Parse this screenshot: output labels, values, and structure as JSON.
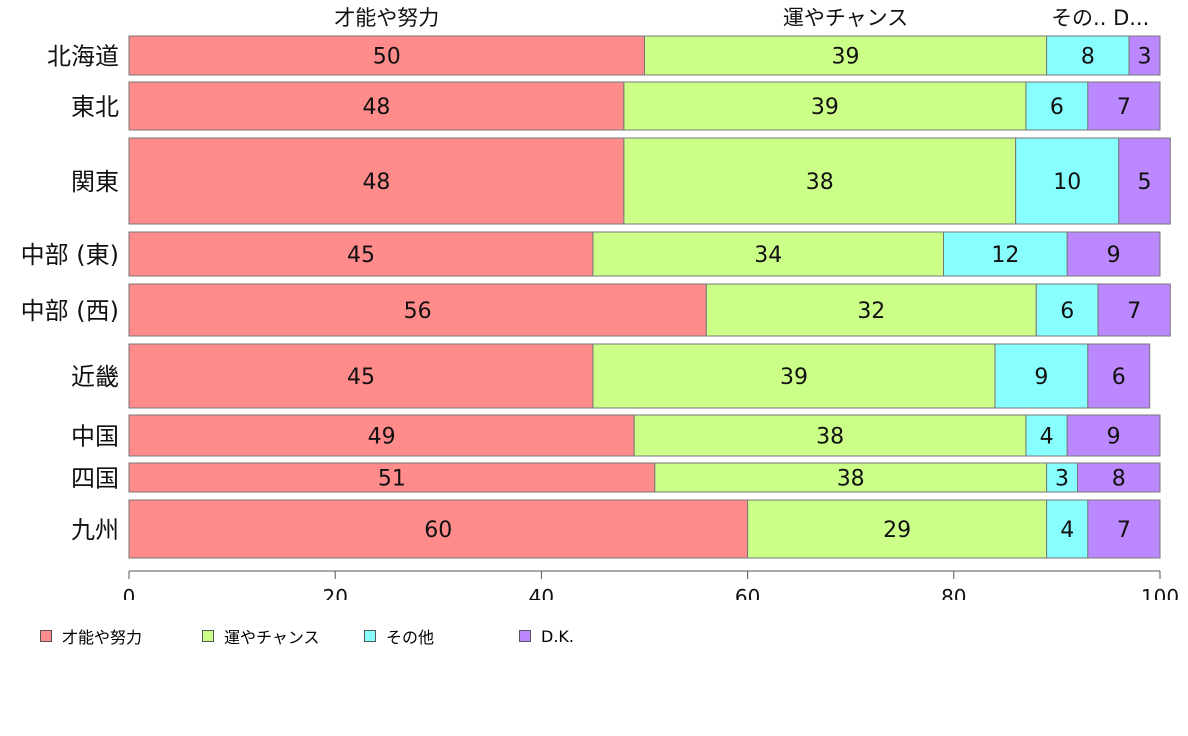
{
  "chart_data": {
    "type": "bar",
    "orientation": "horizontal",
    "stacked": true,
    "categories": [
      "北海道",
      "東北",
      "関東",
      "中部 (東)",
      "中部 (西)",
      "近畿",
      "中国",
      "四国",
      "九州"
    ],
    "series": [
      {
        "name": "才能や努力",
        "color": "#ff8b8b",
        "values": [
          50,
          48,
          48,
          45,
          56,
          45,
          49,
          51,
          60
        ]
      },
      {
        "name": "運やチャンス",
        "color": "#ccff88",
        "values": [
          39,
          39,
          38,
          34,
          32,
          39,
          38,
          38,
          29
        ]
      },
      {
        "name": "その他",
        "color": "#88ffff",
        "values": [
          8,
          6,
          10,
          12,
          6,
          9,
          4,
          3,
          4
        ]
      },
      {
        "name": "D.K.",
        "color": "#bb88ff",
        "values": [
          3,
          7,
          5,
          9,
          7,
          6,
          9,
          8,
          7
        ]
      }
    ],
    "top_labels": [
      "才能や努力",
      "運やチャンス",
      "その.. D..."
    ],
    "xlim": [
      0,
      100
    ],
    "xticks": [
      "0",
      "20",
      "40",
      "60",
      "80",
      "100"
    ],
    "grid": false,
    "legend_position": "bottom-left"
  }
}
